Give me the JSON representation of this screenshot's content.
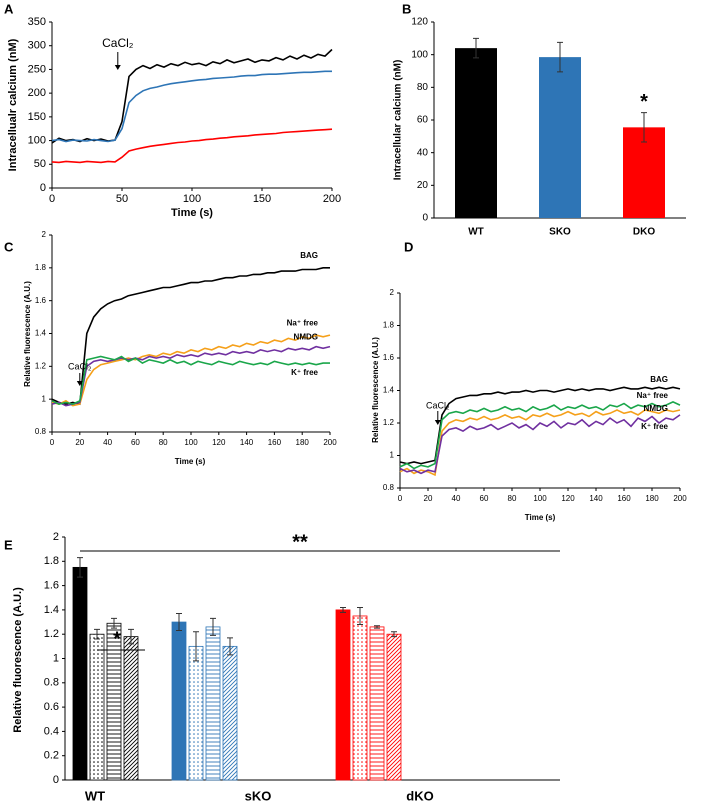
{
  "chart_data": [
    {
      "type": "line",
      "panel": "A",
      "ylabel": "Intracellualr calcium (nM)",
      "xlabel": "Time (s)",
      "xlim": [
        0,
        200
      ],
      "xticks": [
        0,
        50,
        100,
        150,
        200
      ],
      "ylim": [
        0,
        350
      ],
      "yticks": [
        0,
        50,
        100,
        150,
        200,
        250,
        300,
        350
      ],
      "annotations": [
        {
          "text": "CaCl₂",
          "x": 47
        }
      ],
      "x": [
        0,
        5,
        10,
        15,
        20,
        25,
        30,
        35,
        40,
        45,
        50,
        55,
        60,
        65,
        70,
        75,
        80,
        85,
        90,
        95,
        100,
        105,
        110,
        115,
        120,
        125,
        130,
        135,
        140,
        145,
        150,
        155,
        160,
        165,
        170,
        175,
        180,
        185,
        190,
        195,
        200
      ],
      "series": [
        {
          "color": "#000000",
          "values": [
            95,
            105,
            100,
            102,
            98,
            104,
            100,
            103,
            99,
            101,
            140,
            235,
            250,
            258,
            252,
            260,
            255,
            262,
            258,
            265,
            260,
            263,
            258,
            266,
            262,
            270,
            264,
            268,
            272,
            265,
            270,
            268,
            275,
            270,
            278,
            272,
            280,
            274,
            282,
            278,
            292
          ]
        },
        {
          "color": "#2e75b6",
          "values": [
            100,
            102,
            98,
            101,
            100,
            99,
            102,
            100,
            98,
            101,
            125,
            180,
            195,
            205,
            210,
            213,
            217,
            220,
            222,
            224,
            226,
            228,
            229,
            231,
            232,
            233,
            234,
            236,
            237,
            237,
            239,
            240,
            240,
            241,
            242,
            243,
            244,
            244,
            245,
            246,
            246
          ]
        },
        {
          "color": "#ff0000",
          "values": [
            55,
            54,
            56,
            55,
            54,
            56,
            55,
            54,
            56,
            55,
            65,
            78,
            82,
            85,
            88,
            90,
            92,
            94,
            96,
            97,
            99,
            100,
            102,
            103,
            105,
            106,
            108,
            109,
            110,
            112,
            113,
            114,
            115,
            117,
            118,
            119,
            120,
            121,
            122,
            123,
            124
          ]
        }
      ]
    },
    {
      "type": "bar",
      "panel": "B",
      "ylabel": "Intracellular calcium (nM)",
      "ylim": [
        0,
        120
      ],
      "yticks": [
        0,
        20,
        40,
        60,
        80,
        100,
        120
      ],
      "categories": [
        "WT",
        "SKO",
        "DKO"
      ],
      "values": [
        104,
        98.5,
        55.5
      ],
      "errors": [
        6,
        9,
        9
      ],
      "colors": [
        "#000000",
        "#2e75b6",
        "#ff0000"
      ],
      "annotations": [
        {
          "text": "*"
        }
      ]
    },
    {
      "type": "line",
      "panel": "C",
      "ylabel": "Relative fluorescence (A.U.)",
      "xlabel": "Time (s)",
      "xlim": [
        0,
        200
      ],
      "xticks": [
        0,
        20,
        40,
        60,
        80,
        100,
        120,
        140,
        160,
        180,
        200
      ],
      "ylim": [
        0.8,
        2
      ],
      "yticks": [
        0.8,
        1,
        1.2,
        1.4,
        1.6,
        1.8,
        2
      ],
      "annotations": [
        {
          "text": "CaCl₂",
          "x": 20
        }
      ],
      "x": [
        0,
        5,
        10,
        15,
        20,
        25,
        30,
        35,
        40,
        45,
        50,
        55,
        60,
        65,
        70,
        75,
        80,
        85,
        90,
        95,
        100,
        105,
        110,
        115,
        120,
        125,
        130,
        135,
        140,
        145,
        150,
        155,
        160,
        165,
        170,
        175,
        180,
        185,
        190,
        195,
        200
      ],
      "series": [
        {
          "name": "BAG",
          "color": "#000000",
          "values": [
            1.0,
            0.98,
            0.97,
            0.98,
            0.97,
            1.4,
            1.5,
            1.55,
            1.58,
            1.6,
            1.61,
            1.63,
            1.64,
            1.65,
            1.66,
            1.67,
            1.68,
            1.68,
            1.69,
            1.7,
            1.71,
            1.71,
            1.72,
            1.72,
            1.73,
            1.74,
            1.74,
            1.75,
            1.75,
            1.76,
            1.76,
            1.77,
            1.77,
            1.78,
            1.78,
            1.78,
            1.79,
            1.79,
            1.79,
            1.8,
            1.8
          ]
        },
        {
          "name": "Na⁺ free",
          "color": "#f5a01a",
          "values": [
            0.98,
            0.97,
            0.99,
            0.96,
            0.97,
            1.12,
            1.18,
            1.21,
            1.22,
            1.23,
            1.24,
            1.25,
            1.24,
            1.26,
            1.27,
            1.26,
            1.28,
            1.27,
            1.29,
            1.28,
            1.3,
            1.29,
            1.31,
            1.3,
            1.32,
            1.31,
            1.33,
            1.32,
            1.34,
            1.33,
            1.35,
            1.34,
            1.36,
            1.35,
            1.37,
            1.36,
            1.38,
            1.37,
            1.39,
            1.38,
            1.39
          ]
        },
        {
          "name": "NMDG",
          "color": "#7030a0",
          "values": [
            0.97,
            0.98,
            0.96,
            0.97,
            0.98,
            1.2,
            1.23,
            1.24,
            1.23,
            1.24,
            1.25,
            1.24,
            1.25,
            1.24,
            1.26,
            1.25,
            1.26,
            1.25,
            1.27,
            1.26,
            1.27,
            1.26,
            1.28,
            1.27,
            1.28,
            1.27,
            1.29,
            1.28,
            1.29,
            1.28,
            1.3,
            1.29,
            1.3,
            1.29,
            1.31,
            1.3,
            1.31,
            1.3,
            1.32,
            1.31,
            1.32
          ]
        },
        {
          "name": "K⁺ free",
          "color": "#1aa64a",
          "values": [
            0.99,
            0.97,
            0.98,
            0.97,
            0.99,
            1.24,
            1.25,
            1.26,
            1.25,
            1.24,
            1.26,
            1.23,
            1.25,
            1.22,
            1.24,
            1.23,
            1.22,
            1.24,
            1.22,
            1.23,
            1.21,
            1.23,
            1.22,
            1.21,
            1.23,
            1.22,
            1.21,
            1.23,
            1.22,
            1.21,
            1.22,
            1.21,
            1.23,
            1.22,
            1.21,
            1.22,
            1.21,
            1.22,
            1.21,
            1.22,
            1.22
          ]
        }
      ]
    },
    {
      "type": "line",
      "panel": "D",
      "ylabel": "Relative fluorescence (A.U.)",
      "xlabel": "Time (s)",
      "xlim": [
        0,
        200
      ],
      "xticks": [
        0,
        20,
        40,
        60,
        80,
        100,
        120,
        140,
        160,
        180,
        200
      ],
      "ylim": [
        0.8,
        2
      ],
      "yticks": [
        0.8,
        1,
        1.2,
        1.4,
        1.6,
        1.8,
        2
      ],
      "annotations": [
        {
          "text": "CaCl₂",
          "x": 27
        }
      ],
      "x": [
        0,
        5,
        10,
        15,
        20,
        25,
        30,
        35,
        40,
        45,
        50,
        55,
        60,
        65,
        70,
        75,
        80,
        85,
        90,
        95,
        100,
        105,
        110,
        115,
        120,
        125,
        130,
        135,
        140,
        145,
        150,
        155,
        160,
        165,
        170,
        175,
        180,
        185,
        190,
        195,
        200
      ],
      "series": [
        {
          "name": "BAG",
          "color": "#000000",
          "values": [
            0.96,
            0.95,
            0.96,
            0.95,
            0.96,
            0.97,
            1.25,
            1.32,
            1.35,
            1.36,
            1.37,
            1.37,
            1.38,
            1.38,
            1.39,
            1.38,
            1.39,
            1.39,
            1.4,
            1.39,
            1.4,
            1.4,
            1.39,
            1.4,
            1.41,
            1.4,
            1.41,
            1.4,
            1.41,
            1.41,
            1.4,
            1.41,
            1.42,
            1.41,
            1.41,
            1.42,
            1.41,
            1.42,
            1.41,
            1.42,
            1.41
          ]
        },
        {
          "name": "Na⁺ free",
          "color": "#1aa64a",
          "values": [
            0.93,
            0.95,
            0.92,
            0.94,
            0.93,
            0.95,
            1.22,
            1.26,
            1.27,
            1.26,
            1.28,
            1.27,
            1.29,
            1.27,
            1.28,
            1.3,
            1.28,
            1.29,
            1.27,
            1.3,
            1.28,
            1.29,
            1.31,
            1.28,
            1.3,
            1.29,
            1.31,
            1.29,
            1.3,
            1.28,
            1.31,
            1.3,
            1.32,
            1.29,
            1.31,
            1.3,
            1.32,
            1.3,
            1.31,
            1.33,
            1.31
          ]
        },
        {
          "name": "NMDG",
          "color": "#f5a01a",
          "values": [
            0.9,
            0.92,
            0.89,
            0.91,
            0.9,
            0.88,
            1.15,
            1.2,
            1.22,
            1.21,
            1.23,
            1.22,
            1.24,
            1.22,
            1.23,
            1.25,
            1.23,
            1.24,
            1.22,
            1.25,
            1.24,
            1.26,
            1.24,
            1.25,
            1.27,
            1.25,
            1.26,
            1.24,
            1.27,
            1.25,
            1.26,
            1.28,
            1.26,
            1.27,
            1.25,
            1.28,
            1.27,
            1.26,
            1.28,
            1.27,
            1.28
          ]
        },
        {
          "name": "K⁺ free",
          "color": "#7030a0",
          "values": [
            0.92,
            0.9,
            0.91,
            0.89,
            0.91,
            0.9,
            1.12,
            1.16,
            1.17,
            1.15,
            1.18,
            1.16,
            1.17,
            1.19,
            1.16,
            1.18,
            1.2,
            1.17,
            1.19,
            1.16,
            1.2,
            1.18,
            1.21,
            1.17,
            1.2,
            1.19,
            1.22,
            1.18,
            1.21,
            1.19,
            1.23,
            1.2,
            1.22,
            1.18,
            1.23,
            1.21,
            1.24,
            1.2,
            1.23,
            1.22,
            1.25
          ]
        }
      ]
    },
    {
      "type": "bar",
      "panel": "E",
      "ylabel": "Relative fluorescence (A.U.)",
      "ylim": [
        0,
        2
      ],
      "yticks": [
        0,
        0.2,
        0.4,
        0.6,
        0.8,
        1,
        1.2,
        1.4,
        1.6,
        1.8,
        2
      ],
      "categories": [
        "WT",
        "sKO",
        "dKO"
      ],
      "colors": [
        "#000000",
        "#2e75b6",
        "#ff0000"
      ],
      "annotations": [
        {
          "text": "**"
        },
        {
          "text": "*"
        }
      ],
      "series": [
        {
          "pattern": "solid",
          "values": [
            1.75,
            1.3,
            1.4
          ],
          "errors": [
            0.08,
            0.07,
            0.02
          ]
        },
        {
          "pattern": "dots",
          "values": [
            1.2,
            1.1,
            1.35
          ],
          "errors": [
            0.04,
            0.12,
            0.07
          ]
        },
        {
          "pattern": "horizontal",
          "values": [
            1.29,
            1.26,
            1.26
          ],
          "errors": [
            0.04,
            0.07,
            0.01
          ]
        },
        {
          "pattern": "diagonal",
          "values": [
            1.18,
            1.1,
            1.2
          ],
          "errors": [
            0.06,
            0.07,
            0.02
          ]
        }
      ]
    }
  ]
}
